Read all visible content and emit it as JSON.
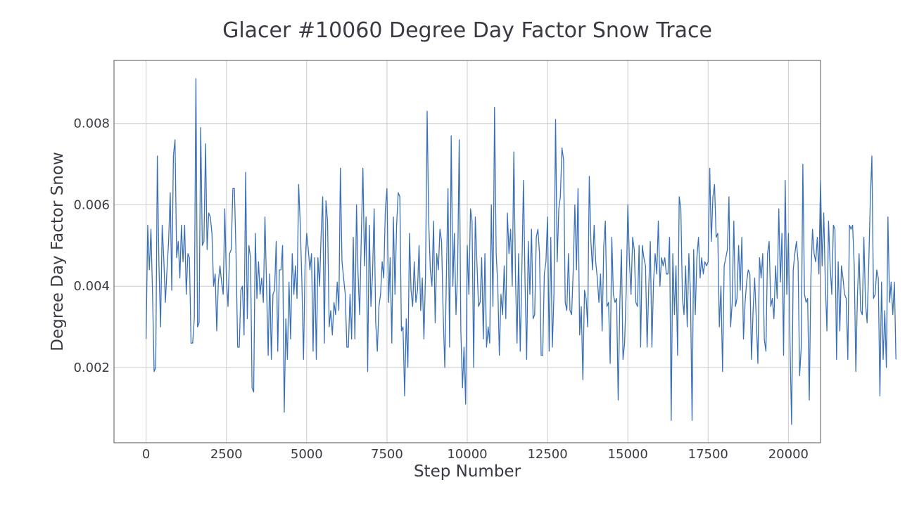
{
  "chart_data": {
    "type": "line",
    "title": "Glacer #10060 Degree Day Factor Snow Trace",
    "xlabel": "Step Number",
    "ylabel": "Degree Day Factor Snow",
    "xlim": [
      -1000,
      21000
    ],
    "ylim": [
      0.00015,
      0.00955
    ],
    "xticks": [
      0,
      2500,
      5000,
      7500,
      10000,
      12500,
      15000,
      17500,
      20000
    ],
    "xtick_labels": [
      "0",
      "2500",
      "5000",
      "7500",
      "10000",
      "12500",
      "15000",
      "17500",
      "20000"
    ],
    "yticks": [
      0.002,
      0.004,
      0.006,
      0.008
    ],
    "ytick_labels": [
      "0.002",
      "0.004",
      "0.006",
      "0.008"
    ],
    "grid": true,
    "line_color": "#3a70b8",
    "series": [
      {
        "name": "",
        "x_start": 0,
        "x_step": 50,
        "values": [
          0.0027,
          0.0055,
          0.0044,
          0.0054,
          0.0038,
          0.0019,
          0.002,
          0.0072,
          0.0045,
          0.003,
          0.0055,
          0.0047,
          0.0036,
          0.0044,
          0.0051,
          0.0063,
          0.0039,
          0.0072,
          0.0076,
          0.0047,
          0.0051,
          0.0042,
          0.0055,
          0.0046,
          0.0055,
          0.0038,
          0.0048,
          0.0047,
          0.0026,
          0.0026,
          0.0032,
          0.0091,
          0.003,
          0.0031,
          0.0079,
          0.005,
          0.0051,
          0.0075,
          0.0049,
          0.0058,
          0.0057,
          0.0053,
          0.004,
          0.0043,
          0.0029,
          0.0041,
          0.0045,
          0.0041,
          0.0038,
          0.0059,
          0.0042,
          0.0035,
          0.0048,
          0.0049,
          0.0064,
          0.0064,
          0.0048,
          0.0025,
          0.0025,
          0.0039,
          0.004,
          0.0028,
          0.0068,
          0.0032,
          0.005,
          0.0047,
          0.0015,
          0.0014,
          0.0053,
          0.0037,
          0.0046,
          0.0038,
          0.0042,
          0.0036,
          0.0057,
          0.004,
          0.0023,
          0.0043,
          0.0022,
          0.0038,
          0.0039,
          0.0051,
          0.0024,
          0.0044,
          0.0044,
          0.005,
          0.0009,
          0.0032,
          0.0022,
          0.0041,
          0.0027,
          0.0048,
          0.0038,
          0.0045,
          0.0037,
          0.0065,
          0.0055,
          0.0041,
          0.0022,
          0.0045,
          0.0053,
          0.0049,
          0.0044,
          0.0048,
          0.0024,
          0.0047,
          0.0022,
          0.0047,
          0.004,
          0.0053,
          0.0062,
          0.0026,
          0.0061,
          0.0056,
          0.003,
          0.0034,
          0.0028,
          0.0036,
          0.0033,
          0.0041,
          0.0034,
          0.0069,
          0.0046,
          0.0042,
          0.0038,
          0.0025,
          0.0025,
          0.0038,
          0.0027,
          0.0052,
          0.0027,
          0.006,
          0.0043,
          0.0033,
          0.0052,
          0.0069,
          0.0045,
          0.0057,
          0.0019,
          0.0055,
          0.0035,
          0.0043,
          0.0059,
          0.0031,
          0.0024,
          0.0035,
          0.0038,
          0.0046,
          0.0042,
          0.0059,
          0.0064,
          0.0036,
          0.0047,
          0.0026,
          0.0057,
          0.0038,
          0.0055,
          0.0063,
          0.0062,
          0.0029,
          0.003,
          0.0013,
          0.0032,
          0.002,
          0.0053,
          0.0039,
          0.0035,
          0.0046,
          0.0036,
          0.0039,
          0.005,
          0.0034,
          0.0042,
          0.0027,
          0.0043,
          0.0083,
          0.0056,
          0.0044,
          0.004,
          0.0056,
          0.0031,
          0.0048,
          0.0044,
          0.0054,
          0.0051,
          0.0033,
          0.002,
          0.0042,
          0.0064,
          0.0025,
          0.0077,
          0.004,
          0.0053,
          0.0033,
          0.0044,
          0.0076,
          0.0029,
          0.0015,
          0.0025,
          0.0011,
          0.005,
          0.0038,
          0.0059,
          0.0056,
          0.002,
          0.0057,
          0.0046,
          0.0035,
          0.0036,
          0.0047,
          0.0027,
          0.0048,
          0.0025,
          0.003,
          0.0026,
          0.006,
          0.0035,
          0.0084,
          0.0048,
          0.004,
          0.0023,
          0.0038,
          0.0033,
          0.0045,
          0.0032,
          0.0058,
          0.0048,
          0.0054,
          0.004,
          0.0073,
          0.0043,
          0.0026,
          0.0048,
          0.0024,
          0.0044,
          0.0066,
          0.0041,
          0.0022,
          0.0051,
          0.0038,
          0.0054,
          0.0032,
          0.0033,
          0.0052,
          0.0054,
          0.0048,
          0.0023,
          0.0023,
          0.0043,
          0.0046,
          0.0057,
          0.0024,
          0.0052,
          0.0025,
          0.0038,
          0.0081,
          0.0046,
          0.0059,
          0.0062,
          0.0074,
          0.0071,
          0.0036,
          0.0034,
          0.0048,
          0.0034,
          0.0033,
          0.0044,
          0.006,
          0.0044,
          0.0064,
          0.0028,
          0.0035,
          0.0017,
          0.0039,
          0.0037,
          0.003,
          0.0067,
          0.0051,
          0.0044,
          0.0055,
          0.0046,
          0.0042,
          0.0036,
          0.0043,
          0.0029,
          0.005,
          0.0056,
          0.0035,
          0.0036,
          0.0021,
          0.0052,
          0.0038,
          0.0036,
          0.0037,
          0.0012,
          0.0036,
          0.0049,
          0.0022,
          0.0026,
          0.0039,
          0.006,
          0.0046,
          0.0038,
          0.0052,
          0.0049,
          0.0036,
          0.0035,
          0.005,
          0.0025,
          0.005,
          0.0047,
          0.0045,
          0.0025,
          0.0039,
          0.0051,
          0.0025,
          0.0041,
          0.0048,
          0.0043,
          0.0056,
          0.004,
          0.0047,
          0.0045,
          0.0047,
          0.0043,
          0.0043,
          0.0052,
          0.0007,
          0.0048,
          0.0033,
          0.0045,
          0.0023,
          0.0062,
          0.0059,
          0.0037,
          0.0033,
          0.0045,
          0.003,
          0.0048,
          0.0038,
          0.0007,
          0.0049,
          0.0033,
          0.0047,
          0.0052,
          0.0042,
          0.0047,
          0.0043,
          0.0046,
          0.0045,
          0.0046,
          0.0069,
          0.0051,
          0.0062,
          0.0065,
          0.0052,
          0.0053,
          0.003,
          0.004,
          0.0019,
          0.0045,
          0.0047,
          0.0049,
          0.0062,
          0.003,
          0.0036,
          0.0056,
          0.0035,
          0.0037,
          0.005,
          0.0039,
          0.0052,
          0.0027,
          0.0036,
          0.0041,
          0.0044,
          0.0043,
          0.0022,
          0.0034,
          0.0042,
          0.0032,
          0.0021,
          0.0047,
          0.0042,
          0.0048,
          0.0027,
          0.0024,
          0.0048,
          0.0051,
          0.0035,
          0.0037,
          0.0032,
          0.0045,
          0.0037,
          0.0059,
          0.0041,
          0.0053,
          0.0023,
          0.0066,
          0.0038,
          0.0053,
          0.0026,
          0.0006,
          0.0044,
          0.0048,
          0.0051,
          0.0046,
          0.0018,
          0.0025,
          0.007,
          0.0038,
          0.0036,
          0.0037,
          0.0012,
          0.0042,
          0.0054,
          0.0048,
          0.0046,
          0.0052,
          0.0043,
          0.0066,
          0.0045,
          0.0058,
          0.0041,
          0.0029,
          0.0056,
          0.0045,
          0.0038,
          0.0055,
          0.0054,
          0.0022,
          0.0046,
          0.0029,
          0.0045,
          0.0042,
          0.0038,
          0.0037,
          0.0022,
          0.0055,
          0.0054,
          0.0055,
          0.0045,
          0.0019,
          0.0038,
          0.0048,
          0.0034,
          0.0033,
          0.0052,
          0.0036,
          0.0031,
          0.0045,
          0.0061,
          0.0072,
          0.0037,
          0.0038,
          0.0044,
          0.0042,
          0.0013,
          0.0041,
          0.0022,
          0.0034,
          0.002,
          0.0057,
          0.0036,
          0.0041,
          0.0033,
          0.0041,
          0.0022
        ]
      }
    ]
  }
}
